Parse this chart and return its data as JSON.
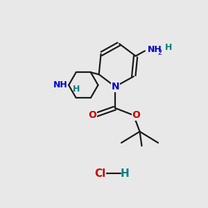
{
  "bg_color": "#e8e8e8",
  "bond_color": "#1a1a1a",
  "N_color": "#0000cc",
  "NH_color": "#008080",
  "O_color": "#cc0000",
  "line_width": 1.6,
  "figsize": [
    3.0,
    3.0
  ],
  "dpi": 100,
  "xlim": [
    0,
    10
  ],
  "ylim": [
    0,
    10
  ]
}
